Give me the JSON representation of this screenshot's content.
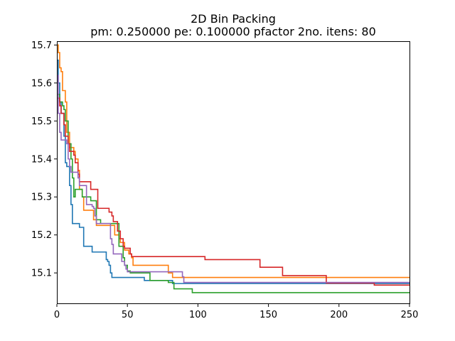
{
  "chart_data": {
    "type": "line",
    "title": "2D Bin Packing",
    "subtitle": "pm: 0.250000 pe: 0.100000 pfactor 2no. itens: 80",
    "xlabel": "",
    "ylabel": "",
    "xlim": [
      0,
      250
    ],
    "ylim": [
      15.018,
      15.71
    ],
    "grid": false,
    "x_ticks": [
      0,
      50,
      100,
      150,
      200,
      250
    ],
    "y_ticks": [
      15.1,
      15.2,
      15.3,
      15.4,
      15.5,
      15.6,
      15.7
    ],
    "x_tick_labels": [
      "0",
      "50",
      "100",
      "150",
      "200",
      "250"
    ],
    "y_tick_labels": [
      "15.1",
      "15.2",
      "15.3",
      "15.4",
      "15.5",
      "15.6",
      "15.7"
    ],
    "series": [
      {
        "color": "#1f77b4",
        "step": true,
        "points": [
          [
            0,
            15.66
          ],
          [
            1,
            15.6
          ],
          [
            2,
            15.55
          ],
          [
            3,
            15.52
          ],
          [
            5,
            15.46
          ],
          [
            6,
            15.39
          ],
          [
            7,
            15.38
          ],
          [
            9,
            15.33
          ],
          [
            10,
            15.28
          ],
          [
            11,
            15.23
          ],
          [
            15,
            15.23
          ],
          [
            16,
            15.22
          ],
          [
            18,
            15.22
          ],
          [
            19,
            15.17
          ],
          [
            24,
            15.17
          ],
          [
            25,
            15.155
          ],
          [
            34,
            15.155
          ],
          [
            35,
            15.135
          ],
          [
            36,
            15.13
          ],
          [
            37,
            15.12
          ],
          [
            38,
            15.1
          ],
          [
            39,
            15.088
          ],
          [
            61,
            15.088
          ],
          [
            62,
            15.08
          ],
          [
            81,
            15.08
          ],
          [
            82,
            15.072
          ],
          [
            250,
            15.072
          ]
        ]
      },
      {
        "color": "#ff7f0e",
        "step": true,
        "points": [
          [
            0,
            15.7
          ],
          [
            1,
            15.68
          ],
          [
            2,
            15.64
          ],
          [
            3,
            15.63
          ],
          [
            4,
            15.58
          ],
          [
            6,
            15.55
          ],
          [
            7,
            15.47
          ],
          [
            9,
            15.43
          ],
          [
            12,
            15.42
          ],
          [
            13,
            15.4
          ],
          [
            15,
            15.37
          ],
          [
            16,
            15.32
          ],
          [
            18,
            15.3
          ],
          [
            19,
            15.265
          ],
          [
            25,
            15.265
          ],
          [
            26,
            15.24
          ],
          [
            28,
            15.225
          ],
          [
            40,
            15.225
          ],
          [
            41,
            15.2
          ],
          [
            44,
            15.19
          ],
          [
            45,
            15.18
          ],
          [
            48,
            15.16
          ],
          [
            51,
            15.15
          ],
          [
            53,
            15.14
          ],
          [
            54,
            15.12
          ],
          [
            78,
            15.12
          ],
          [
            79,
            15.1
          ],
          [
            81,
            15.1
          ],
          [
            82,
            15.088
          ],
          [
            250,
            15.088
          ]
        ]
      },
      {
        "color": "#2ca02c",
        "step": true,
        "points": [
          [
            0,
            15.57
          ],
          [
            2,
            15.55
          ],
          [
            4,
            15.54
          ],
          [
            5,
            15.53
          ],
          [
            6,
            15.5
          ],
          [
            8,
            15.44
          ],
          [
            10,
            15.4
          ],
          [
            11,
            15.35
          ],
          [
            12,
            15.3
          ],
          [
            13,
            15.32
          ],
          [
            17,
            15.32
          ],
          [
            18,
            15.3
          ],
          [
            23,
            15.3
          ],
          [
            24,
            15.29
          ],
          [
            27,
            15.29
          ],
          [
            28,
            15.24
          ],
          [
            31,
            15.23
          ],
          [
            43,
            15.23
          ],
          [
            44,
            15.17
          ],
          [
            47,
            15.14
          ],
          [
            48,
            15.12
          ],
          [
            50,
            15.105
          ],
          [
            52,
            15.1
          ],
          [
            65,
            15.1
          ],
          [
            66,
            15.08
          ],
          [
            78,
            15.08
          ],
          [
            79,
            15.075
          ],
          [
            82,
            15.075
          ],
          [
            83,
            15.058
          ],
          [
            95,
            15.058
          ],
          [
            96,
            15.048
          ],
          [
            250,
            15.048
          ]
        ]
      },
      {
        "color": "#d62728",
        "step": true,
        "points": [
          [
            0,
            15.56
          ],
          [
            2,
            15.54
          ],
          [
            3,
            15.52
          ],
          [
            5,
            15.49
          ],
          [
            6,
            15.46
          ],
          [
            8,
            15.44
          ],
          [
            9,
            15.42
          ],
          [
            12,
            15.41
          ],
          [
            13,
            15.39
          ],
          [
            15,
            15.36
          ],
          [
            16,
            15.34
          ],
          [
            23,
            15.34
          ],
          [
            24,
            15.32
          ],
          [
            28,
            15.32
          ],
          [
            29,
            15.27
          ],
          [
            36,
            15.27
          ],
          [
            37,
            15.26
          ],
          [
            39,
            15.25
          ],
          [
            40,
            15.235
          ],
          [
            42,
            15.235
          ],
          [
            43,
            15.21
          ],
          [
            45,
            15.19
          ],
          [
            47,
            15.17
          ],
          [
            48,
            15.165
          ],
          [
            50,
            15.165
          ],
          [
            52,
            15.15
          ],
          [
            53,
            15.143
          ],
          [
            104,
            15.143
          ],
          [
            105,
            15.135
          ],
          [
            143,
            15.135
          ],
          [
            144,
            15.115
          ],
          [
            159,
            15.115
          ],
          [
            160,
            15.093
          ],
          [
            190,
            15.093
          ],
          [
            191,
            15.073
          ],
          [
            224,
            15.073
          ],
          [
            225,
            15.068
          ],
          [
            250,
            15.068
          ]
        ]
      },
      {
        "color": "#9467bd",
        "step": true,
        "points": [
          [
            0,
            15.62
          ],
          [
            1,
            15.52
          ],
          [
            2,
            15.47
          ],
          [
            3,
            15.45
          ],
          [
            6,
            15.45
          ],
          [
            7,
            15.44
          ],
          [
            8,
            15.4
          ],
          [
            9,
            15.38
          ],
          [
            10,
            15.365
          ],
          [
            14,
            15.365
          ],
          [
            15,
            15.35
          ],
          [
            16,
            15.33
          ],
          [
            20,
            15.33
          ],
          [
            21,
            15.28
          ],
          [
            24,
            15.28
          ],
          [
            25,
            15.275
          ],
          [
            26,
            15.27
          ],
          [
            27,
            15.25
          ],
          [
            28,
            15.23
          ],
          [
            37,
            15.23
          ],
          [
            38,
            15.19
          ],
          [
            39,
            15.175
          ],
          [
            40,
            15.15
          ],
          [
            45,
            15.15
          ],
          [
            46,
            15.13
          ],
          [
            48,
            15.12
          ],
          [
            49,
            15.11
          ],
          [
            50,
            15.103
          ],
          [
            88,
            15.103
          ],
          [
            89,
            15.09
          ],
          [
            90,
            15.075
          ],
          [
            250,
            15.075
          ]
        ]
      }
    ]
  }
}
